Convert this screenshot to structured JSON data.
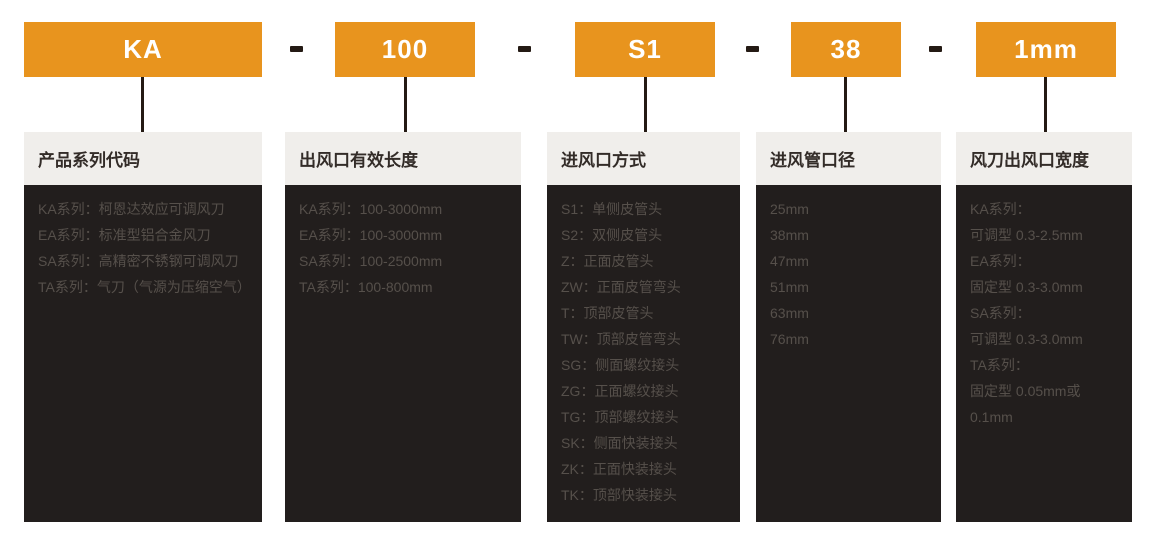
{
  "model_code": {
    "separator": "-",
    "segments": [
      "KA",
      "100",
      "S1",
      "38",
      "1mm"
    ]
  },
  "columns": [
    {
      "title": "产品系列代码",
      "items": [
        "KA系列：柯恩达效应可调风刀",
        "EA系列：标准型铝合金风刀",
        "SA系列：高精密不锈钢可调风刀",
        "TA系列：气刀（气源为压缩空气）"
      ]
    },
    {
      "title": "出风口有效长度",
      "items": [
        "KA系列：100-3000mm",
        "EA系列：100-3000mm",
        "SA系列：100-2500mm",
        "TA系列：100-800mm"
      ]
    },
    {
      "title": "进风口方式",
      "items": [
        "S1：单侧皮管头",
        "S2：双侧皮管头",
        "Z：正面皮管头",
        "ZW：正面皮管弯头",
        "T：顶部皮管头",
        "TW：顶部皮管弯头",
        "SG：侧面螺纹接头",
        "ZG：正面螺纹接头",
        "TG：顶部螺纹接头",
        "SK：侧面快装接头",
        "ZK：正面快装接头",
        "TK：顶部快装接头"
      ]
    },
    {
      "title": "进风管口径",
      "items": [
        "25mm",
        "38mm",
        "47mm",
        "51mm",
        "63mm",
        "76mm"
      ]
    },
    {
      "title": "风刀出风口宽度",
      "items": [
        "KA系列：",
        "可调型 0.3-2.5mm",
        "EA系列：",
        "固定型 0.3-3.0mm",
        "SA系列：",
        "可调型 0.3-3.0mm",
        "TA系列：",
        "固定型 0.05mm或",
        "0.1mm"
      ]
    }
  ],
  "colors": {
    "accent_orange": "#E8941E",
    "code_text": "#FFFFFF",
    "separator_and_connector": "#241A14",
    "panel_header_bg": "#F0EEEB",
    "panel_header_text": "#332C28",
    "panel_body_bg": "#221E1D",
    "panel_body_text": "#56504B",
    "page_bg": "#FFFFFF"
  }
}
